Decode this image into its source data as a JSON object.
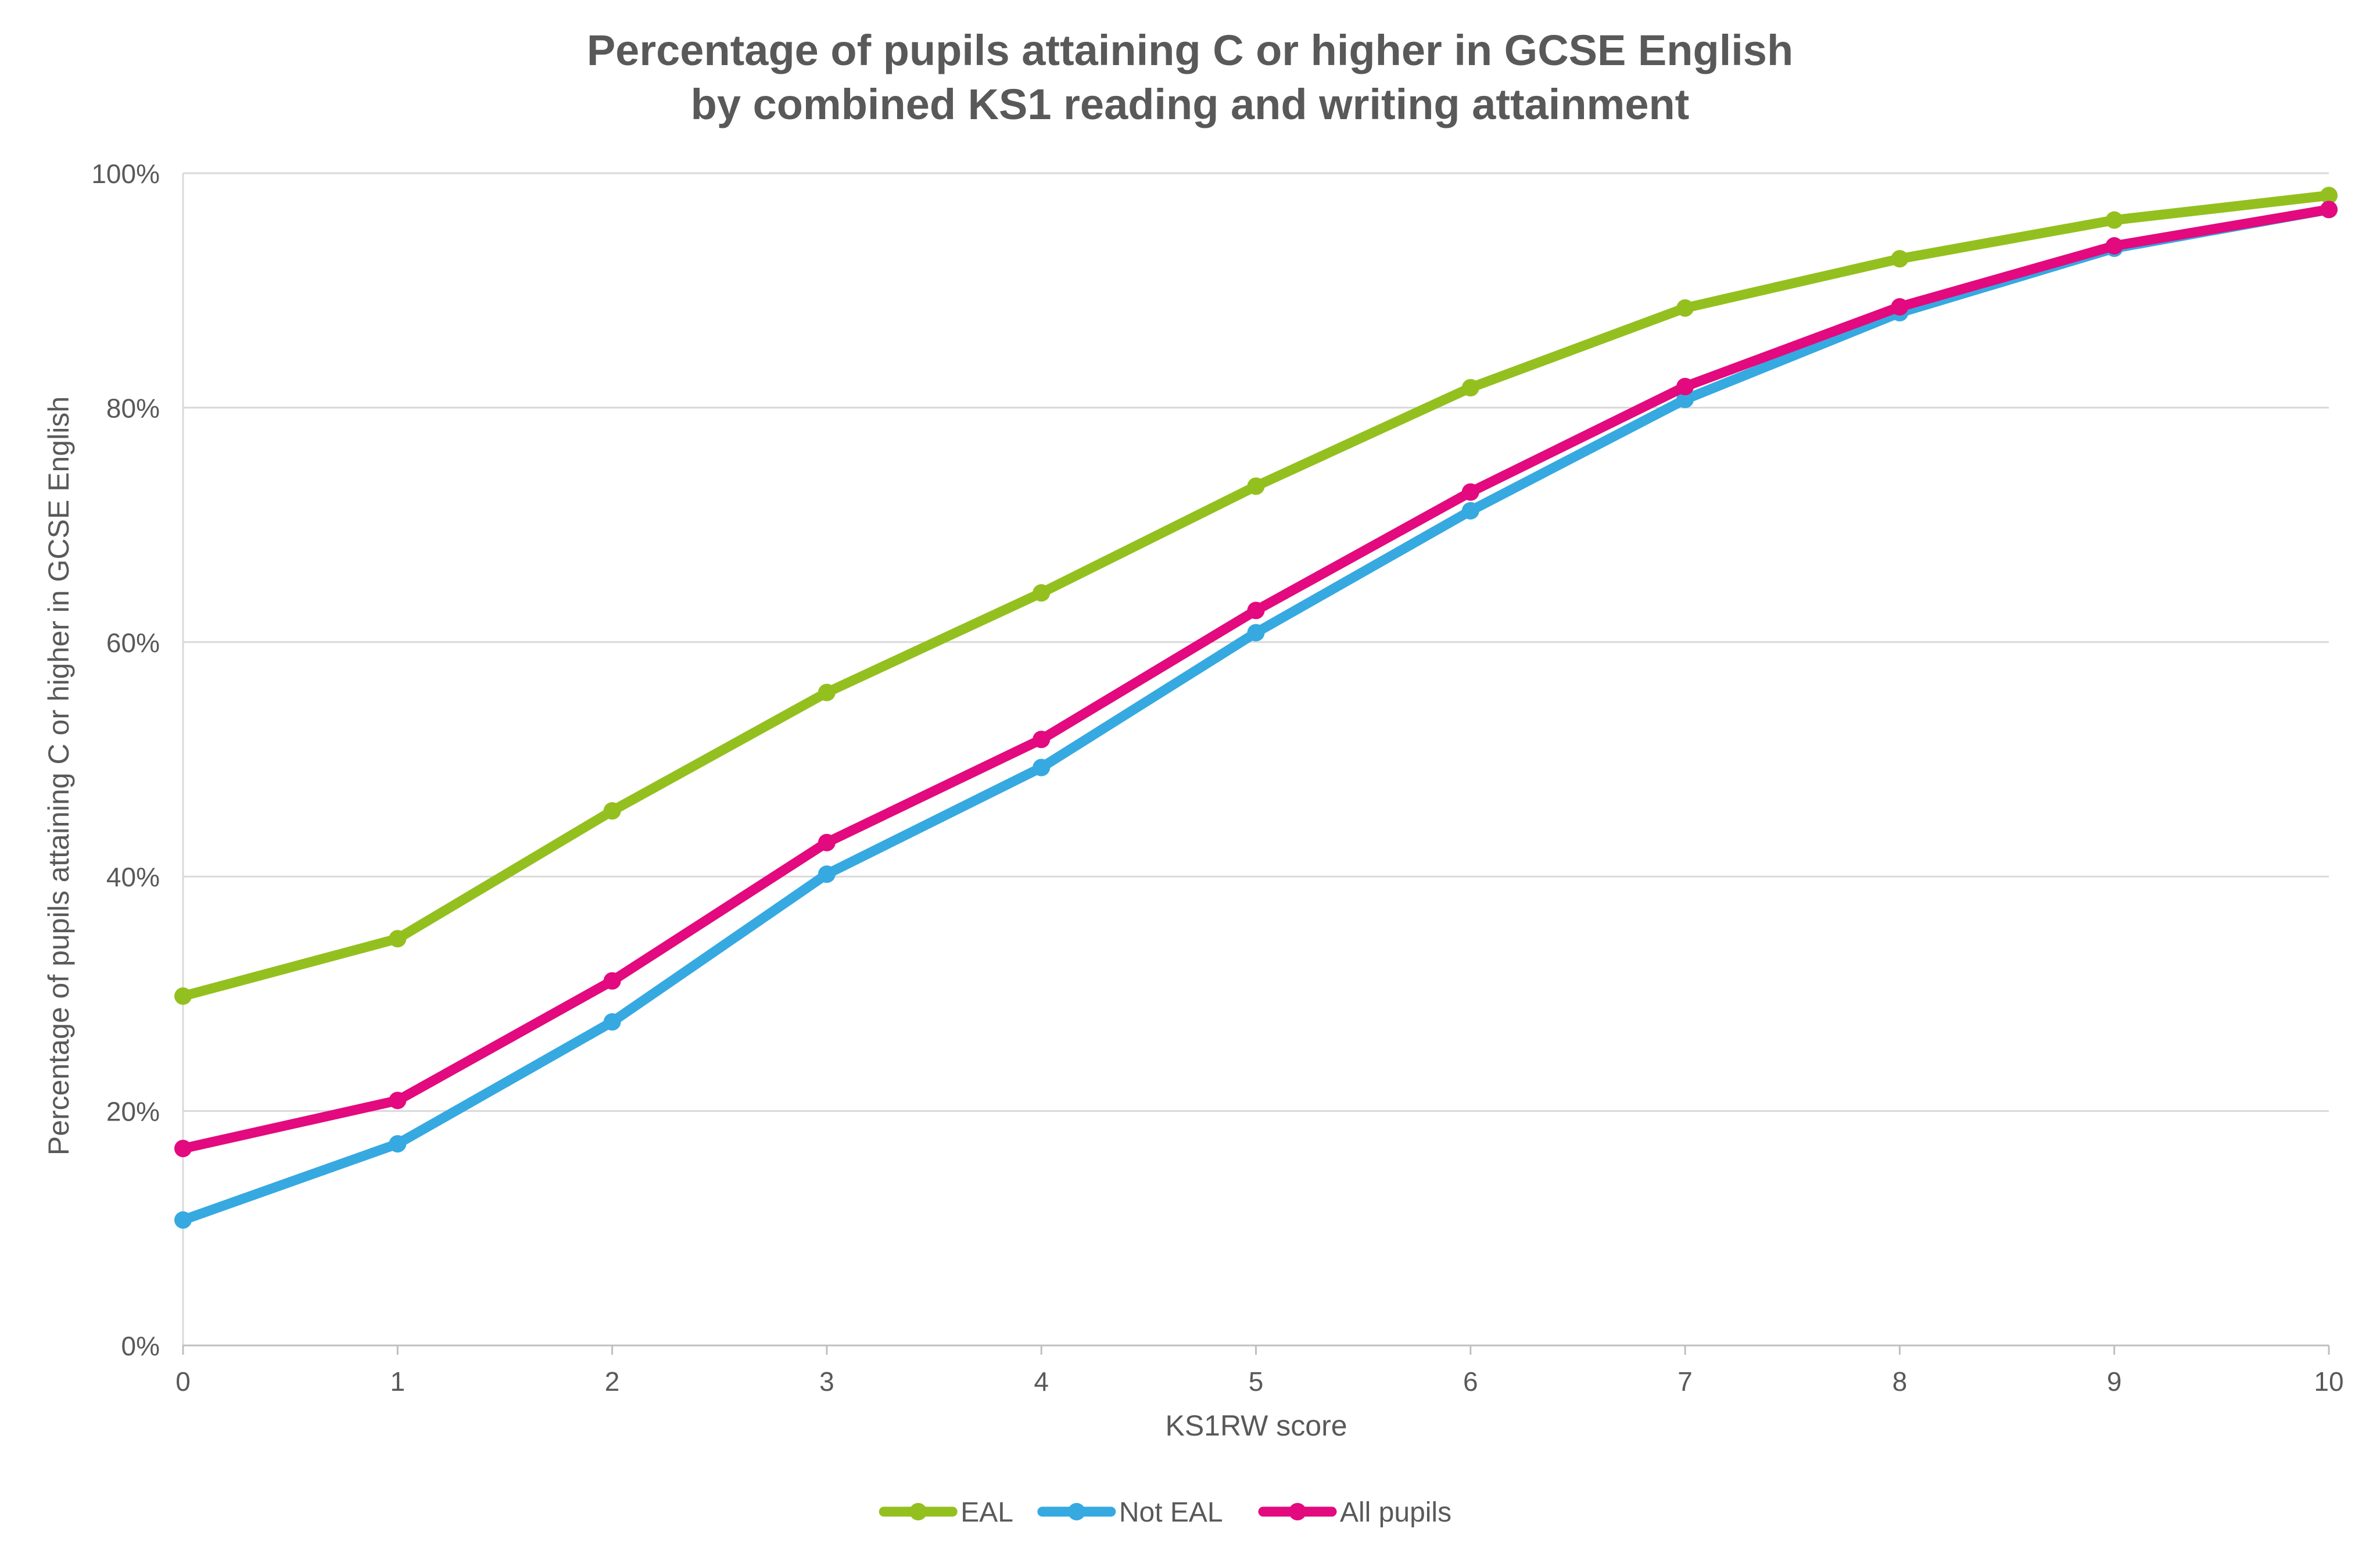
{
  "chart_data": {
    "type": "line",
    "title_line1": "Percentage of pupils attaining C or higher in GCSE English",
    "title_line2": "by combined KS1 reading and writing attainment",
    "xlabel": "KS1RW score",
    "ylabel": "Percentage  of pupils attaining C or higher in GCSE English",
    "x": [
      0,
      1,
      2,
      3,
      4,
      5,
      6,
      7,
      8,
      9,
      10
    ],
    "x_tick_labels": [
      "0",
      "1",
      "2",
      "3",
      "4",
      "5",
      "6",
      "7",
      "8",
      "9",
      "10"
    ],
    "ylim": [
      0,
      100
    ],
    "y_ticks": [
      0,
      20,
      40,
      60,
      80,
      100
    ],
    "y_tick_labels": [
      "0%",
      "20%",
      "40%",
      "60%",
      "80%",
      "100%"
    ],
    "grid": true,
    "legend_position": "bottom",
    "series": [
      {
        "name": "EAL",
        "color": "#93c01f",
        "values": [
          29.8,
          34.7,
          45.6,
          55.7,
          64.2,
          73.3,
          81.7,
          88.5,
          92.7,
          96.0,
          98.1
        ]
      },
      {
        "name": "Not EAL",
        "color": "#36a9e1",
        "values": [
          10.7,
          17.2,
          27.6,
          40.2,
          49.3,
          60.8,
          71.2,
          80.7,
          88.1,
          93.6,
          96.9
        ]
      },
      {
        "name": "All pupils",
        "color": "#e3097f",
        "values": [
          16.8,
          20.9,
          31.1,
          42.9,
          51.7,
          62.7,
          72.8,
          81.8,
          88.6,
          93.8,
          96.9
        ]
      }
    ]
  }
}
